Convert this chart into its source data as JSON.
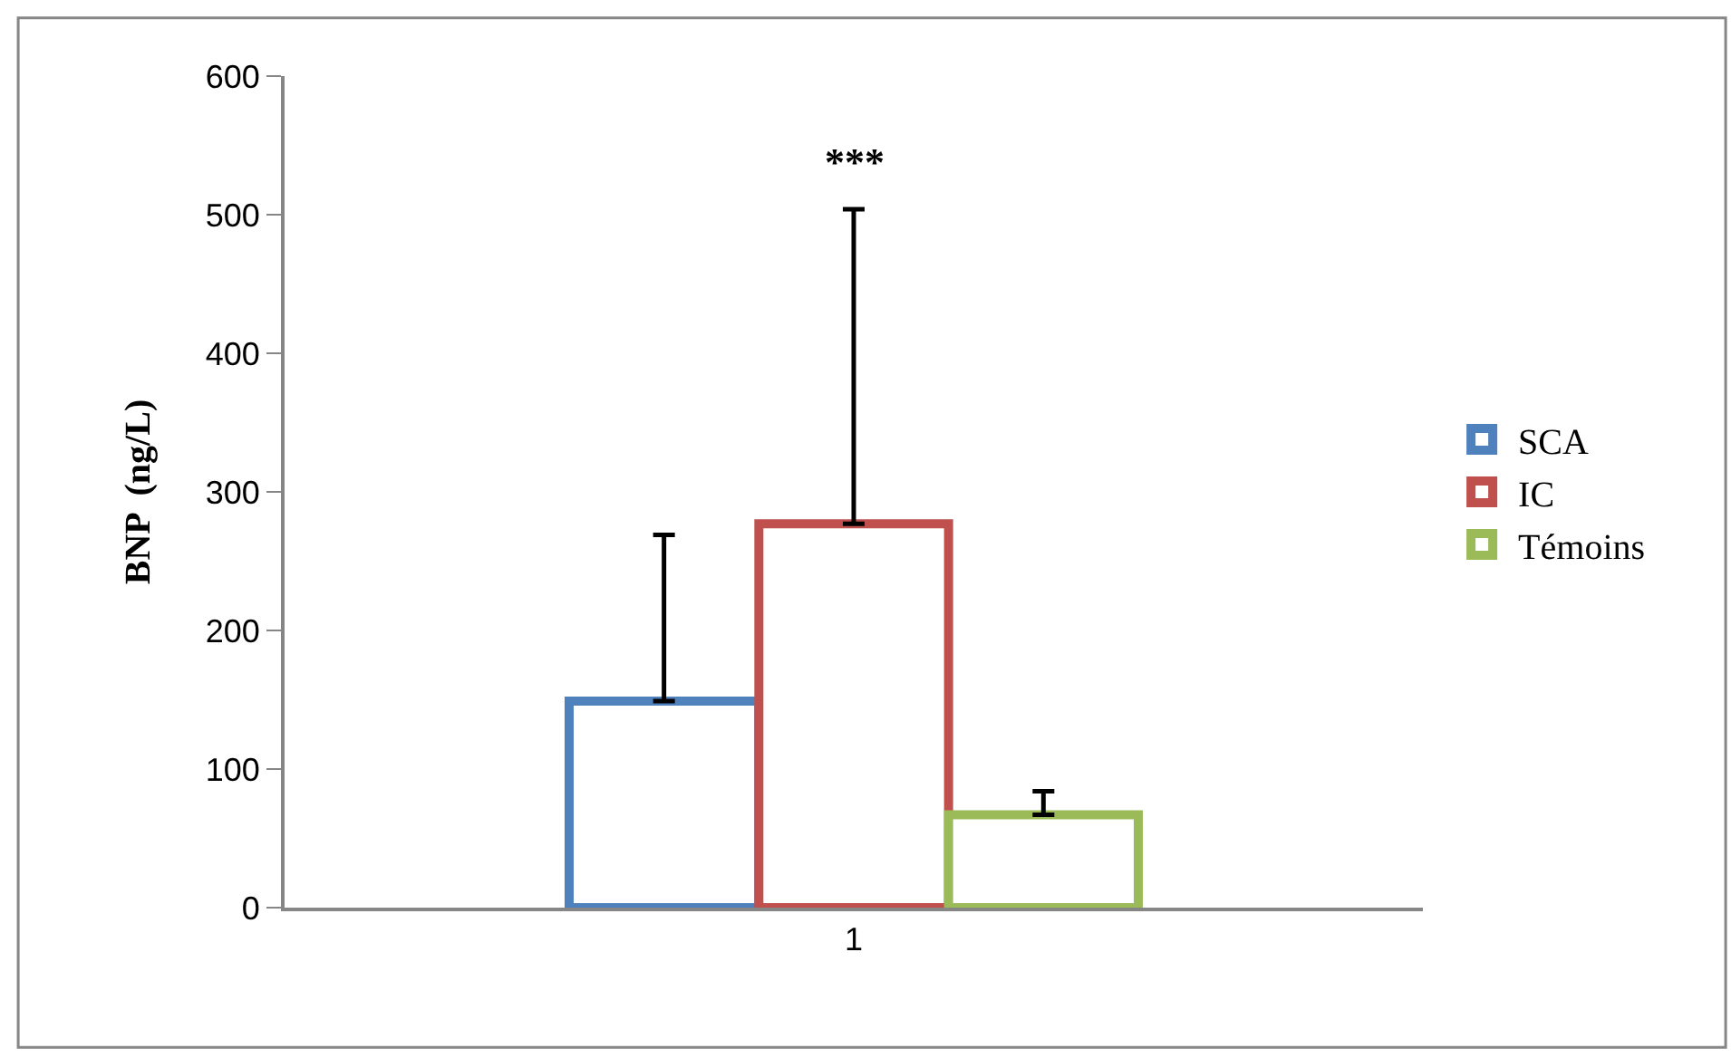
{
  "chart_data": {
    "type": "bar",
    "ylabel": "BNP  (ng/L)",
    "categories": [
      "1"
    ],
    "series": [
      {
        "name": "SCA",
        "color": "#4f81bd",
        "values": [
          149
        ],
        "errors": [
          [
            149,
            269
          ]
        ]
      },
      {
        "name": "IC",
        "color": "#c0504d",
        "values": [
          277
        ],
        "errors": [
          [
            277,
            504
          ]
        ]
      },
      {
        "name": "Témoins",
        "color": "#9bbb59",
        "values": [
          67
        ],
        "errors": [
          [
            67,
            84
          ]
        ]
      }
    ],
    "annotations": [
      "***"
    ],
    "ylim": [
      0,
      600
    ],
    "yticks": [
      0,
      100,
      200,
      300,
      400,
      500,
      600
    ],
    "legend": "right"
  }
}
